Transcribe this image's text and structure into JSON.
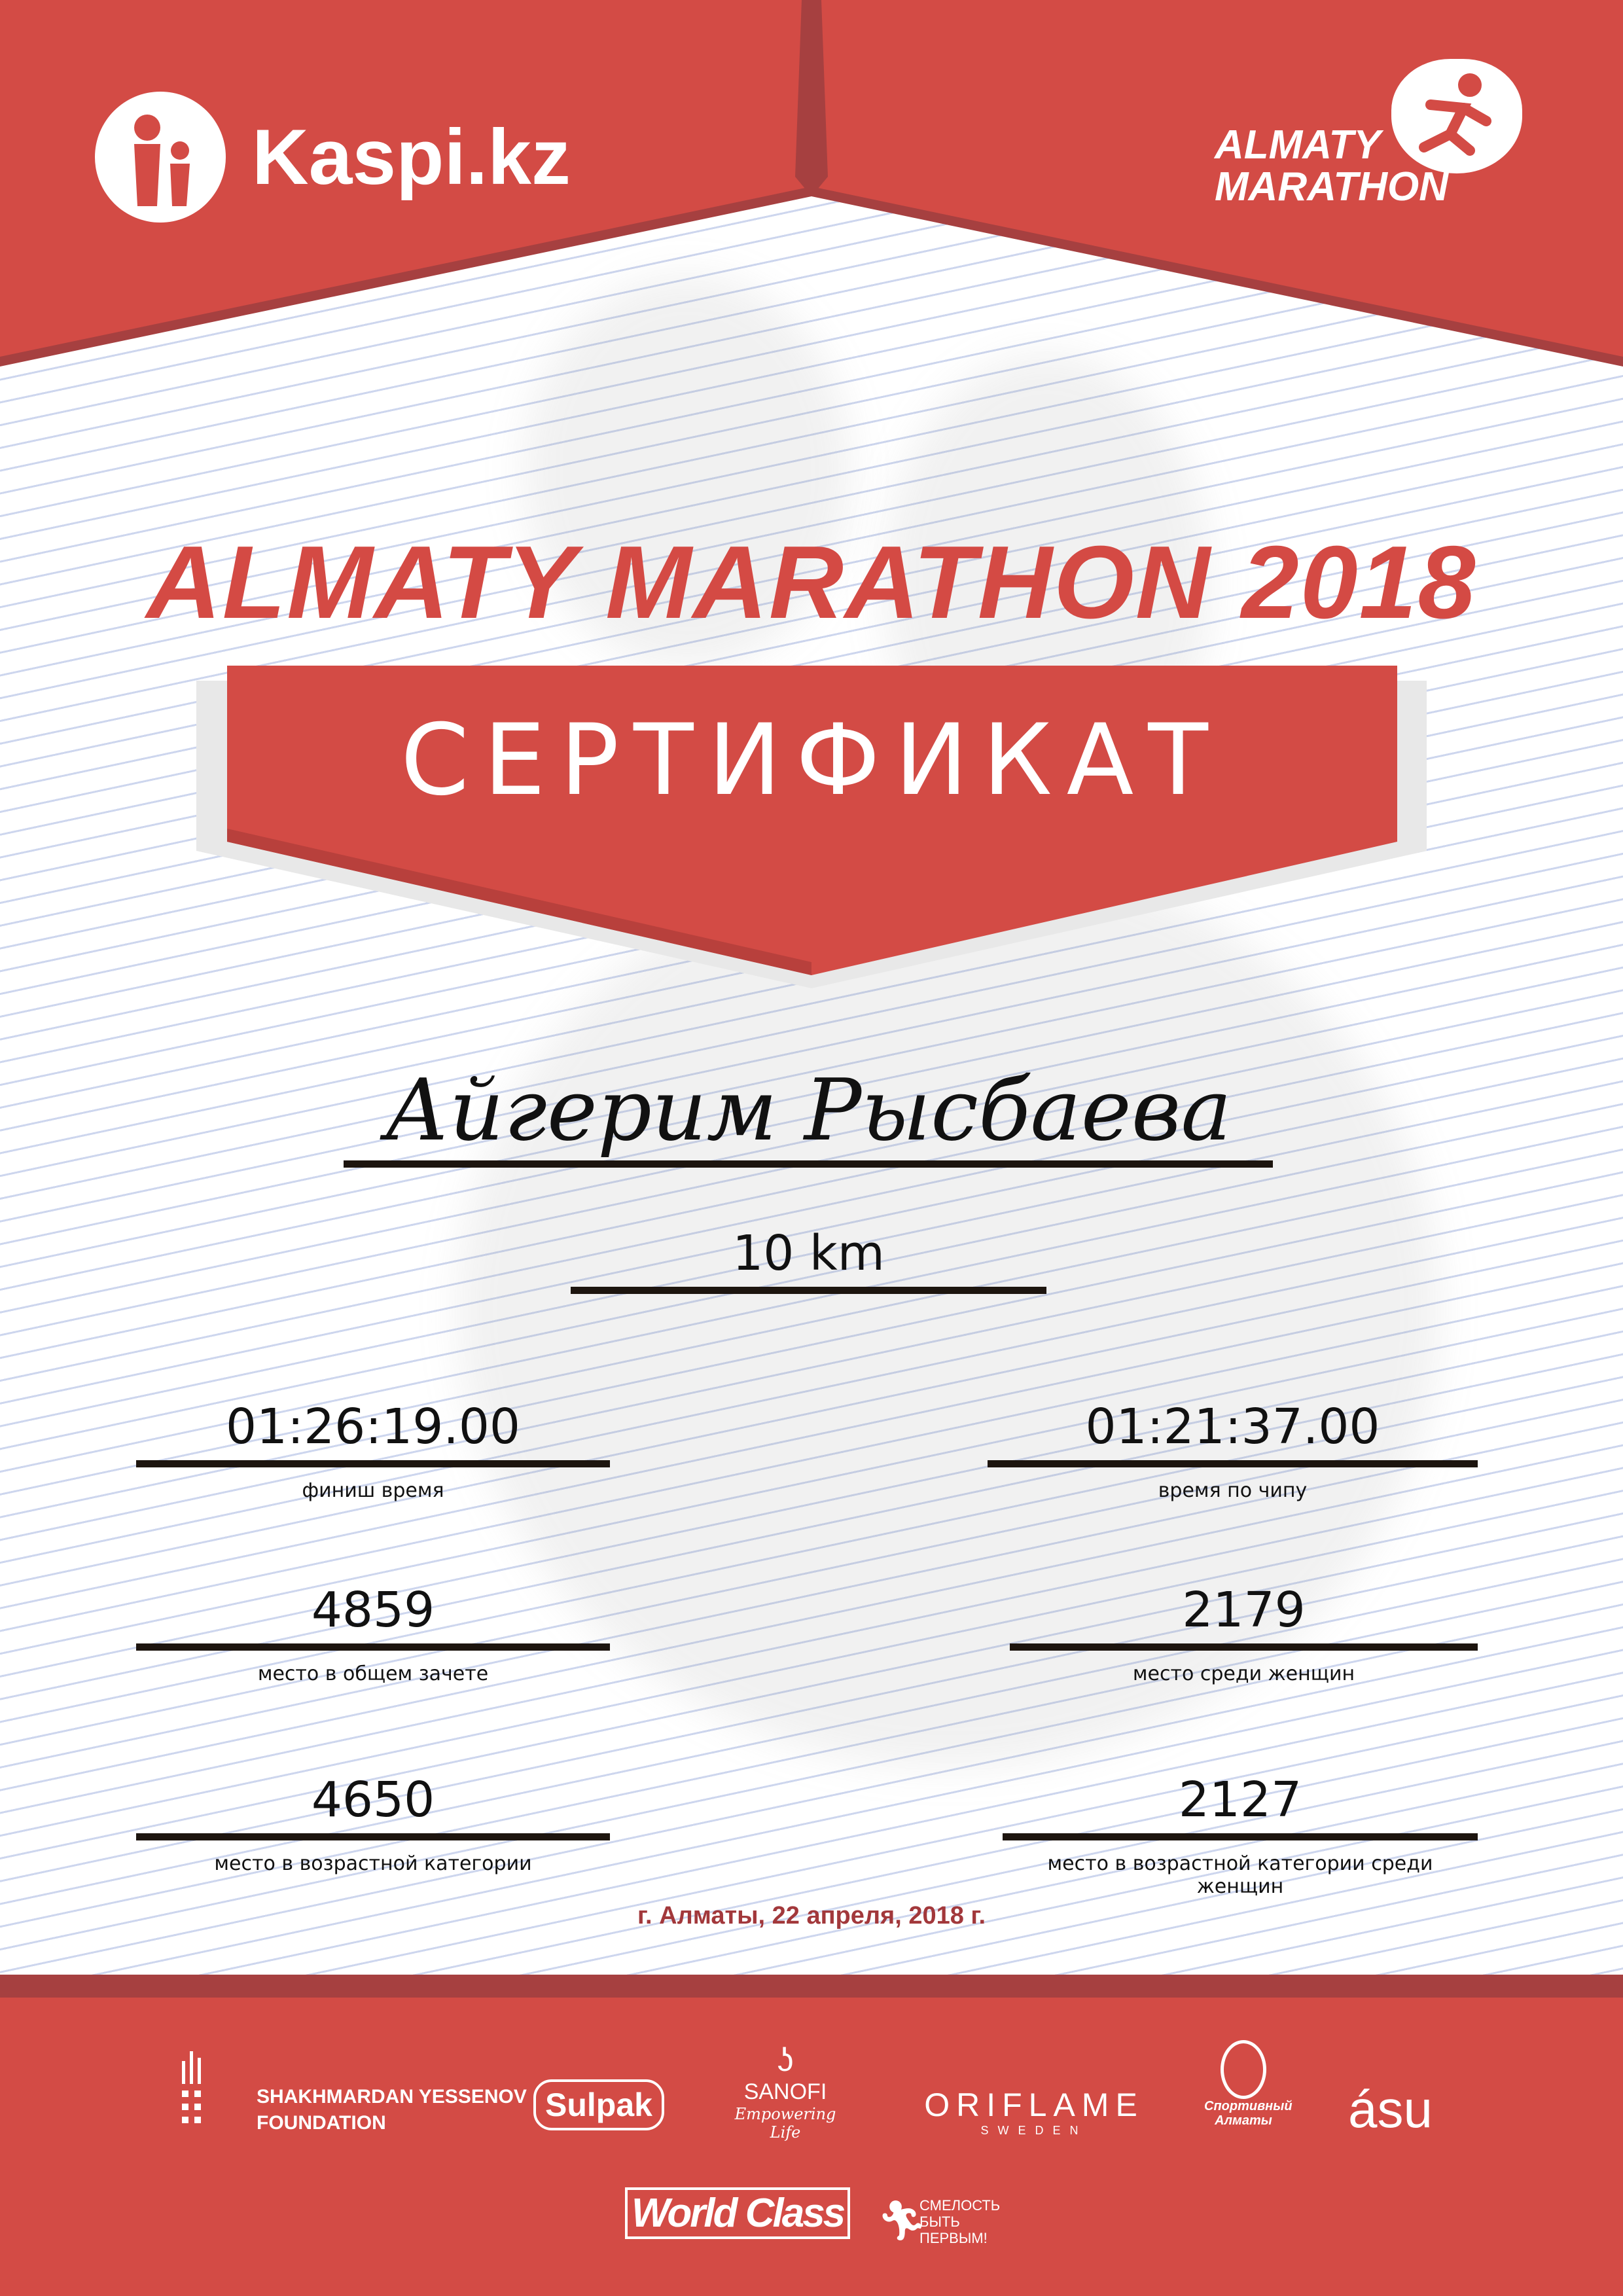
{
  "colors": {
    "brand_red": "#d34b45",
    "dark_red": "#a64040",
    "date_red": "#a2383b"
  },
  "header": {
    "kaspi_logo_text": "Kaspi.kz",
    "marathon_logo_text": [
      "ALMATY",
      "MARATHON"
    ]
  },
  "title": "ALMATY MARATHON 2018",
  "banner": "СЕРТИФИКАТ",
  "participant": {
    "name": "Айгерим Рысбаева",
    "distance": "10 km"
  },
  "results": {
    "finish_time": {
      "value": "01:26:19.00",
      "label": "финиш время"
    },
    "chip_time": {
      "value": "01:21:37.00",
      "label": "время по чипу"
    },
    "overall_place": {
      "value": "4859",
      "label": "место в общем зачете"
    },
    "women_place": {
      "value": "2179",
      "label": "место среди женщин"
    },
    "age_place": {
      "value": "4650",
      "label": "место в возрастной категории"
    },
    "age_women_place": {
      "value": "2127",
      "label": "место в возрастной категории среди женщин"
    }
  },
  "date": "г. Алматы, 22 апреля, 2018 г.",
  "sponsors": {
    "yessenov": [
      "SHAKHMARDAN YESSENOV",
      "FOUNDATION"
    ],
    "sulpak": "Sulpak",
    "sanofi": "SANOFI",
    "sanofi_tagline": "Empowering Life",
    "oriflame": "ORIFLAME",
    "oriflame_sub": "SWEDEN",
    "sport_almaty": [
      "Спортивный",
      "Алматы"
    ],
    "asu": "ásu",
    "worldclass": "World Class",
    "fund": [
      "СМЕЛОСТЬ",
      "БЫТЬ",
      "ПЕРВЫМ!"
    ]
  }
}
